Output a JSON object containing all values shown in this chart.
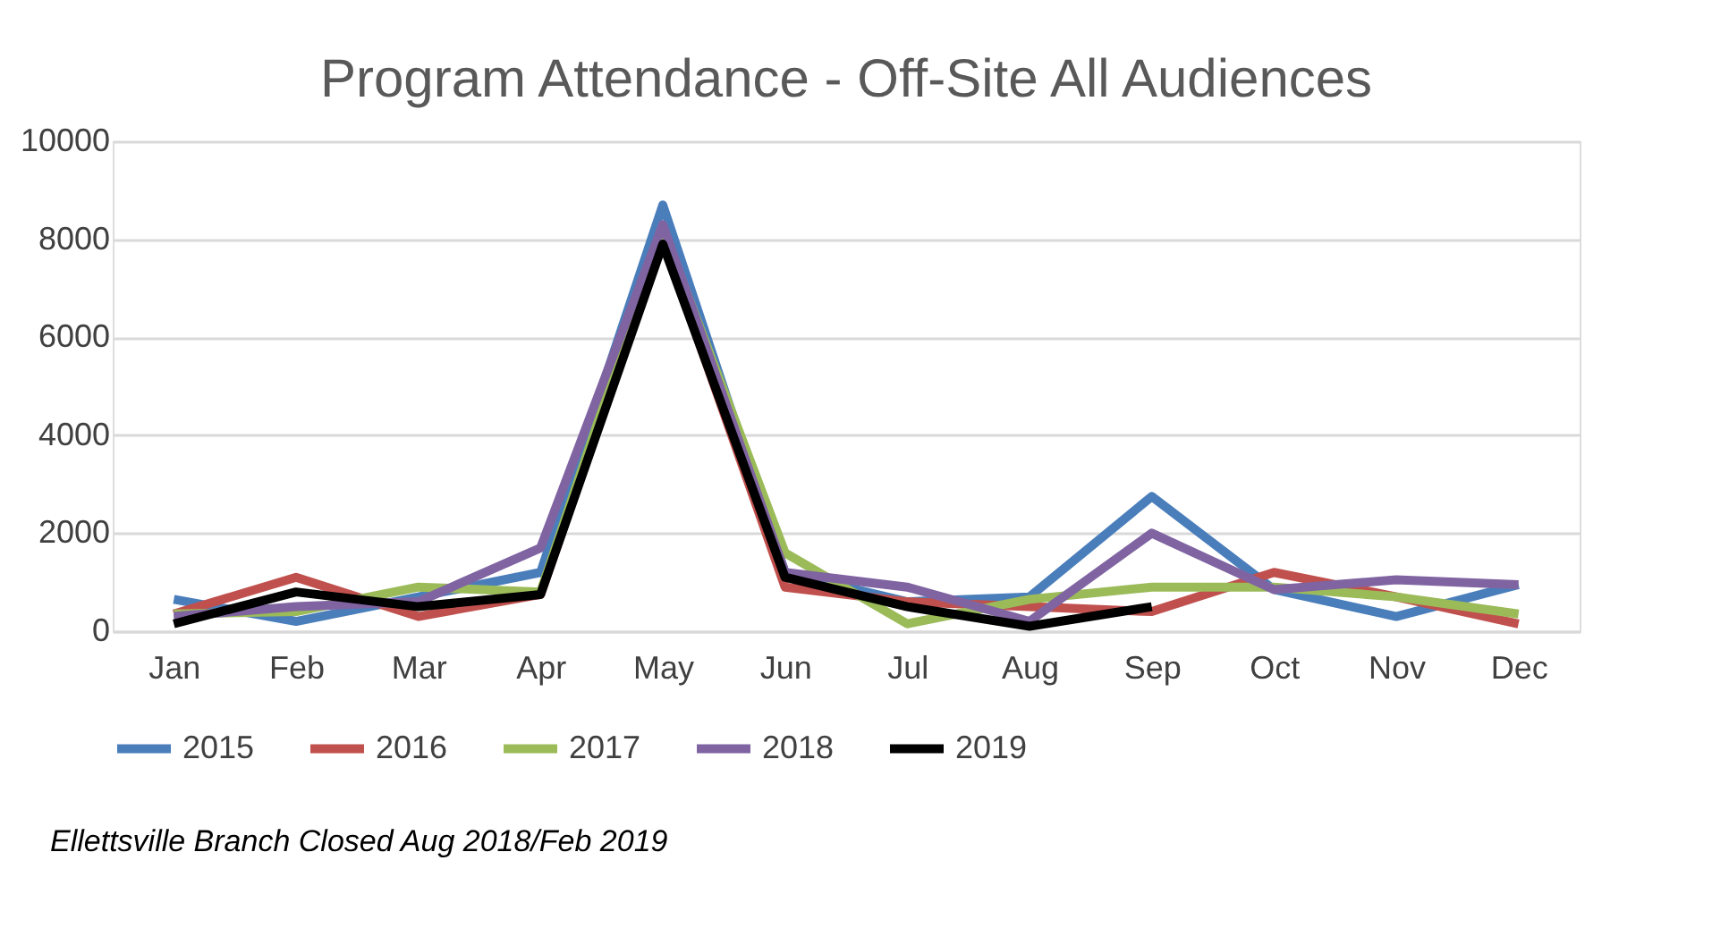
{
  "chart_data": {
    "type": "line",
    "title": "Program Attendance - Off-Site All Audiences",
    "categories": [
      "Jan",
      "Feb",
      "Mar",
      "Apr",
      "May",
      "Jun",
      "Jul",
      "Aug",
      "Sep",
      "Oct",
      "Nov",
      "Dec"
    ],
    "series": [
      {
        "name": "2015",
        "color": "#4a7ebb",
        "values": [
          650,
          200,
          700,
          1200,
          8700,
          1200,
          600,
          700,
          2750,
          850,
          300,
          950
        ]
      },
      {
        "name": "2016",
        "color": "#c0504d",
        "values": [
          350,
          1100,
          300,
          750,
          8000,
          900,
          600,
          500,
          400,
          1200,
          700,
          150
        ]
      },
      {
        "name": "2017",
        "color": "#9bbb59",
        "values": [
          350,
          400,
          900,
          800,
          8200,
          1600,
          150,
          650,
          900,
          900,
          700,
          350
        ]
      },
      {
        "name": "2018",
        "color": "#8064a2",
        "values": [
          300,
          500,
          600,
          1700,
          8300,
          1200,
          900,
          200,
          2000,
          850,
          1050,
          950
        ]
      },
      {
        "name": "2019",
        "color": "#000000",
        "values": [
          150,
          800,
          500,
          750,
          7900,
          1100,
          500,
          100,
          500,
          null,
          null,
          null
        ]
      }
    ],
    "ylim": [
      0,
      10000
    ],
    "yticks": [
      0,
      2000,
      4000,
      6000,
      8000,
      10000
    ],
    "grid": "y",
    "legend": "bottom",
    "marker": "none",
    "annotations": [
      "Ellettsville Branch Closed Aug 2018/Feb 2019"
    ]
  }
}
